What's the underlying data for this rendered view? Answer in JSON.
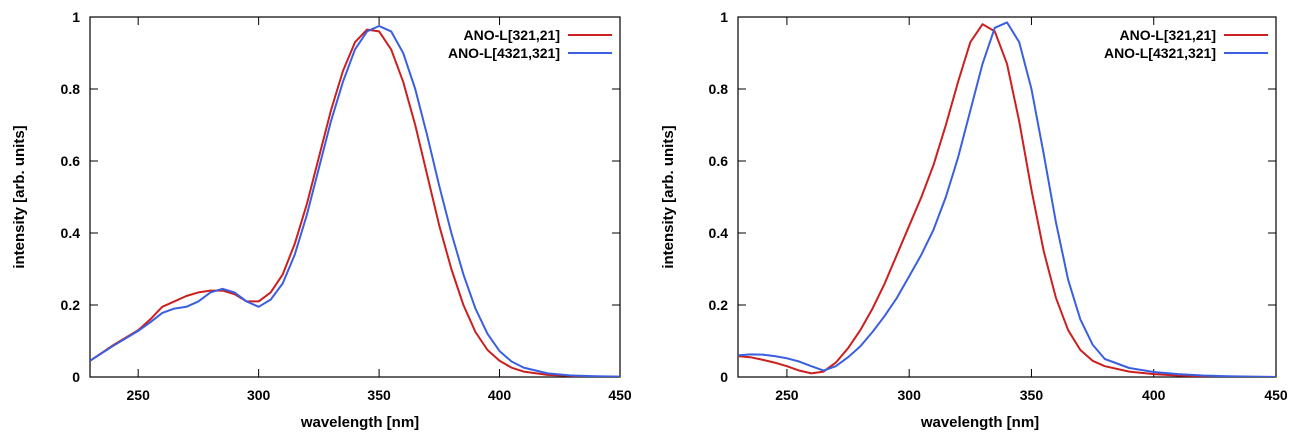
{
  "chart_data": [
    {
      "type": "line",
      "xlabel": "wavelength [nm]",
      "ylabel": "intensity [arb. units]",
      "xlim": [
        230,
        450
      ],
      "ylim": [
        0,
        1
      ],
      "xticks": [
        250,
        300,
        350,
        400,
        450
      ],
      "yticks": [
        0,
        0.2,
        0.4,
        0.6,
        0.8,
        1
      ],
      "ytick_labels": [
        "0",
        "0.2",
        "0.4",
        "0.6",
        "0.8",
        "1"
      ],
      "grid": false,
      "legend": "top-right",
      "series": [
        {
          "name": "ANO-L[321,21]",
          "color": "#cc1f1f",
          "x": [
            230,
            240,
            250,
            255,
            260,
            265,
            270,
            275,
            280,
            285,
            290,
            295,
            300,
            305,
            310,
            315,
            320,
            325,
            330,
            335,
            340,
            345,
            350,
            355,
            360,
            365,
            370,
            375,
            380,
            385,
            390,
            395,
            400,
            405,
            410,
            420,
            430,
            440,
            450
          ],
          "y": [
            0.045,
            0.09,
            0.13,
            0.16,
            0.195,
            0.21,
            0.225,
            0.235,
            0.24,
            0.24,
            0.23,
            0.21,
            0.21,
            0.235,
            0.285,
            0.37,
            0.48,
            0.61,
            0.74,
            0.85,
            0.93,
            0.965,
            0.96,
            0.91,
            0.82,
            0.7,
            0.56,
            0.42,
            0.3,
            0.2,
            0.125,
            0.075,
            0.045,
            0.026,
            0.015,
            0.006,
            0.003,
            0.001,
            0.0
          ]
        },
        {
          "name": "ANO-L[4321,321]",
          "color": "#3a5fe0",
          "x": [
            230,
            240,
            250,
            255,
            260,
            265,
            270,
            275,
            280,
            285,
            290,
            295,
            300,
            305,
            310,
            315,
            320,
            325,
            330,
            335,
            340,
            345,
            350,
            355,
            360,
            365,
            370,
            375,
            380,
            385,
            390,
            395,
            400,
            405,
            410,
            420,
            430,
            440,
            450
          ],
          "y": [
            0.045,
            0.088,
            0.128,
            0.152,
            0.178,
            0.19,
            0.195,
            0.21,
            0.235,
            0.245,
            0.235,
            0.21,
            0.195,
            0.215,
            0.26,
            0.34,
            0.45,
            0.58,
            0.71,
            0.82,
            0.91,
            0.96,
            0.975,
            0.96,
            0.9,
            0.8,
            0.67,
            0.53,
            0.4,
            0.285,
            0.19,
            0.12,
            0.072,
            0.043,
            0.026,
            0.01,
            0.004,
            0.002,
            0.001
          ]
        }
      ]
    },
    {
      "type": "line",
      "xlabel": "wavelength [nm]",
      "ylabel": "intensity [arb. units]",
      "xlim": [
        230,
        450
      ],
      "ylim": [
        0,
        1
      ],
      "xticks": [
        250,
        300,
        350,
        400,
        450
      ],
      "yticks": [
        0,
        0.2,
        0.4,
        0.6,
        0.8,
        1
      ],
      "ytick_labels": [
        "0",
        "0.2",
        "0.4",
        "0.6",
        "0.8",
        "1"
      ],
      "grid": false,
      "legend": "top-right",
      "series": [
        {
          "name": "ANO-L[321,21]",
          "color": "#cc1f1f",
          "x": [
            230,
            235,
            240,
            245,
            250,
            255,
            260,
            265,
            270,
            275,
            280,
            285,
            290,
            295,
            300,
            305,
            310,
            315,
            320,
            325,
            330,
            335,
            340,
            345,
            350,
            355,
            360,
            365,
            370,
            375,
            380,
            390,
            400,
            410,
            420,
            430,
            440,
            450
          ],
          "y": [
            0.058,
            0.055,
            0.048,
            0.04,
            0.03,
            0.018,
            0.01,
            0.015,
            0.04,
            0.08,
            0.13,
            0.19,
            0.26,
            0.34,
            0.42,
            0.5,
            0.59,
            0.7,
            0.82,
            0.93,
            0.98,
            0.96,
            0.87,
            0.71,
            0.52,
            0.35,
            0.22,
            0.13,
            0.075,
            0.045,
            0.03,
            0.015,
            0.008,
            0.004,
            0.002,
            0.001,
            0.0,
            0.0
          ]
        },
        {
          "name": "ANO-L[4321,321]",
          "color": "#3a5fe0",
          "x": [
            230,
            235,
            240,
            245,
            250,
            255,
            260,
            265,
            270,
            275,
            280,
            285,
            290,
            295,
            300,
            305,
            310,
            315,
            320,
            325,
            330,
            335,
            340,
            345,
            350,
            355,
            360,
            365,
            370,
            375,
            380,
            390,
            400,
            410,
            420,
            430,
            440,
            450
          ],
          "y": [
            0.06,
            0.063,
            0.062,
            0.058,
            0.052,
            0.043,
            0.03,
            0.018,
            0.03,
            0.055,
            0.085,
            0.125,
            0.17,
            0.22,
            0.28,
            0.34,
            0.41,
            0.5,
            0.61,
            0.74,
            0.87,
            0.97,
            0.985,
            0.93,
            0.8,
            0.62,
            0.43,
            0.27,
            0.16,
            0.09,
            0.05,
            0.025,
            0.014,
            0.008,
            0.004,
            0.002,
            0.001,
            0.0
          ]
        }
      ]
    }
  ]
}
